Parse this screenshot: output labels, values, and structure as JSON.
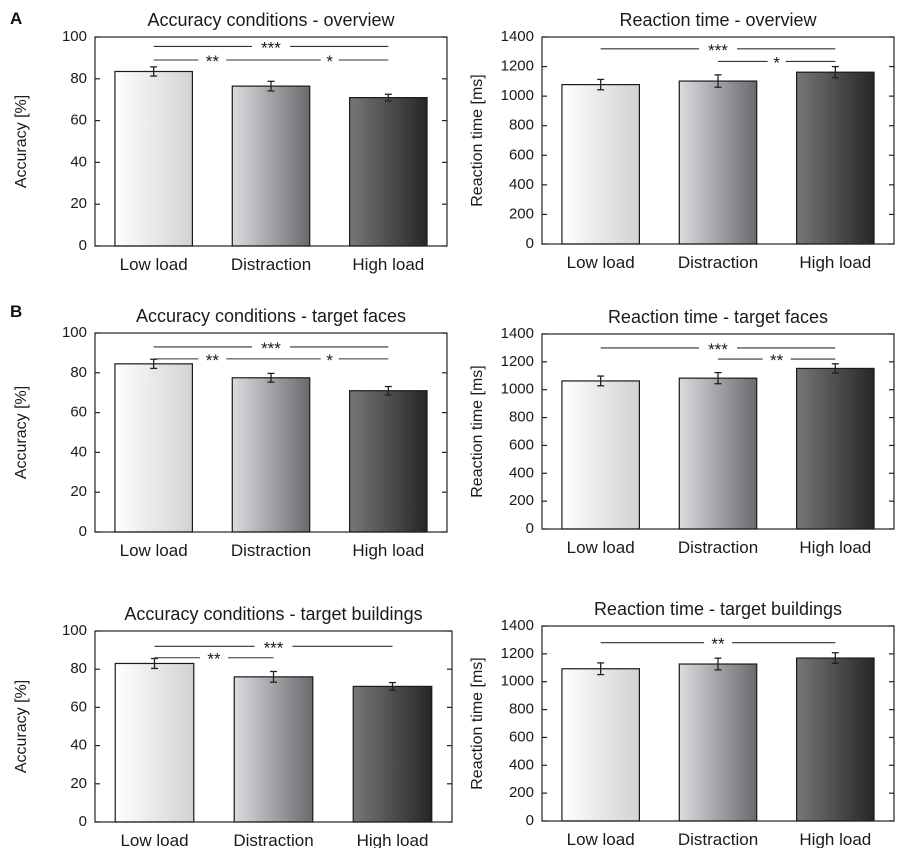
{
  "panel_labels": {
    "a": "A",
    "b": "B"
  },
  "colors": {
    "axis": "#222222",
    "bar_edge": "#1a1a1a",
    "bar_light": "#f4f4f4",
    "bar_mid_light": "#d8d8dc",
    "bar_mid_dark": "#77777c",
    "bar_dark": "#2c2c2c",
    "line": "#333333"
  },
  "chart_data": [
    {
      "type": "bar",
      "title": "Accuracy conditions - overview",
      "ylabel": "Accuracy [%]",
      "ylim": [
        0,
        100
      ],
      "yticks": [
        0,
        20,
        40,
        60,
        80,
        100
      ],
      "categories": [
        "Low load",
        "Distraction",
        "High load"
      ],
      "values": [
        83.5,
        76.5,
        71
      ],
      "errors": [
        2.2,
        2.3,
        1.6
      ],
      "significance": [
        {
          "from": 0,
          "to": 2,
          "label": "***",
          "y": 95.5
        },
        {
          "from": 0,
          "to": 1,
          "label": "**",
          "y": 89
        },
        {
          "from": 1,
          "to": 2,
          "label": "*",
          "y": 89
        }
      ]
    },
    {
      "type": "bar",
      "title": "Reaction time - overview",
      "ylabel": "Reaction time [ms]",
      "ylim": [
        0,
        1400
      ],
      "yticks": [
        0,
        200,
        400,
        600,
        800,
        1000,
        1200,
        1400
      ],
      "categories": [
        "Low load",
        "Distraction",
        "High load"
      ],
      "values": [
        1078,
        1102,
        1162
      ],
      "errors": [
        35,
        42,
        38
      ],
      "significance": [
        {
          "from": 0,
          "to": 2,
          "label": "***",
          "y": 1320
        },
        {
          "from": 1,
          "to": 2,
          "label": "*",
          "y": 1235
        }
      ]
    },
    {
      "type": "bar",
      "title": "Accuracy conditions - target faces",
      "ylabel": "Accuracy [%]",
      "ylim": [
        0,
        100
      ],
      "yticks": [
        0,
        20,
        40,
        60,
        80,
        100
      ],
      "categories": [
        "Low load",
        "Distraction",
        "High load"
      ],
      "values": [
        84.5,
        77.5,
        71
      ],
      "errors": [
        2.3,
        2.2,
        2.1
      ],
      "significance": [
        {
          "from": 0,
          "to": 2,
          "label": "***",
          "y": 93
        },
        {
          "from": 0,
          "to": 1,
          "label": "**",
          "y": 87
        },
        {
          "from": 1,
          "to": 2,
          "label": "*",
          "y": 87
        }
      ]
    },
    {
      "type": "bar",
      "title": "Reaction time - target faces",
      "ylabel": "Reaction time [ms]",
      "ylim": [
        0,
        1400
      ],
      "yticks": [
        0,
        200,
        400,
        600,
        800,
        1000,
        1200,
        1400
      ],
      "categories": [
        "Low load",
        "Distraction",
        "High load"
      ],
      "values": [
        1063,
        1083,
        1153
      ],
      "errors": [
        35,
        40,
        33
      ],
      "significance": [
        {
          "from": 0,
          "to": 2,
          "label": "***",
          "y": 1300
        },
        {
          "from": 1,
          "to": 2,
          "label": "**",
          "y": 1220
        }
      ]
    },
    {
      "type": "bar",
      "title": "Accuracy conditions - target buildings",
      "ylabel": "Accuracy [%]",
      "ylim": [
        0,
        100
      ],
      "yticks": [
        0,
        20,
        40,
        60,
        80,
        100
      ],
      "categories": [
        "Low load",
        "Distraction",
        "High load"
      ],
      "values": [
        83,
        76,
        71
      ],
      "errors": [
        2.6,
        2.8,
        2.0
      ],
      "significance": [
        {
          "from": 0,
          "to": 2,
          "label": "***",
          "y": 92
        },
        {
          "from": 0,
          "to": 1,
          "label": "**",
          "y": 86
        }
      ]
    },
    {
      "type": "bar",
      "title": "Reaction time - target buildings",
      "ylabel": "Reaction time [ms]",
      "ylim": [
        0,
        1400
      ],
      "yticks": [
        0,
        200,
        400,
        600,
        800,
        1000,
        1200,
        1400
      ],
      "categories": [
        "Low load",
        "Distraction",
        "High load"
      ],
      "values": [
        1093,
        1127,
        1170
      ],
      "errors": [
        42,
        42,
        38
      ],
      "significance": [
        {
          "from": 0,
          "to": 2,
          "label": "**",
          "y": 1280
        }
      ]
    }
  ]
}
